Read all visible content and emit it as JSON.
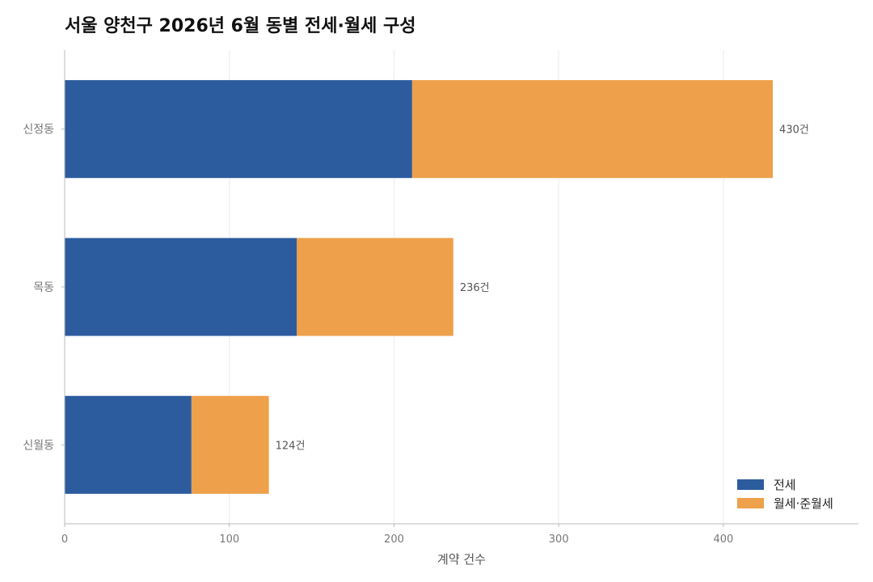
{
  "title": "서울 양천구 2026년 6월 동별 전세·월세 구성",
  "colors": {
    "jeonse": "#2c5c9e",
    "wolse": "#eea04b",
    "grid": "#ebebeb",
    "axis": "#bbbbbb",
    "tick": "#777777"
  },
  "chart_data": {
    "type": "bar",
    "orientation": "horizontal",
    "stacked": true,
    "title": "서울 양천구 2026년 6월 동별 전세·월세 구성",
    "xlabel": "계약 건수",
    "ylabel": "",
    "categories": [
      "신정동",
      "목동",
      "신월동"
    ],
    "series": [
      {
        "name": "전세",
        "values": [
          211,
          141,
          77
        ]
      },
      {
        "name": "월세·준월세",
        "values": [
          219,
          95,
          47
        ]
      }
    ],
    "totals": [
      430,
      236,
      124
    ],
    "total_labels": [
      "430건",
      "236건",
      "124건"
    ],
    "xlim": [
      0,
      482
    ],
    "xticks": [
      0,
      100,
      200,
      300,
      400
    ],
    "grid": true,
    "legend_position": "bottom-right"
  }
}
